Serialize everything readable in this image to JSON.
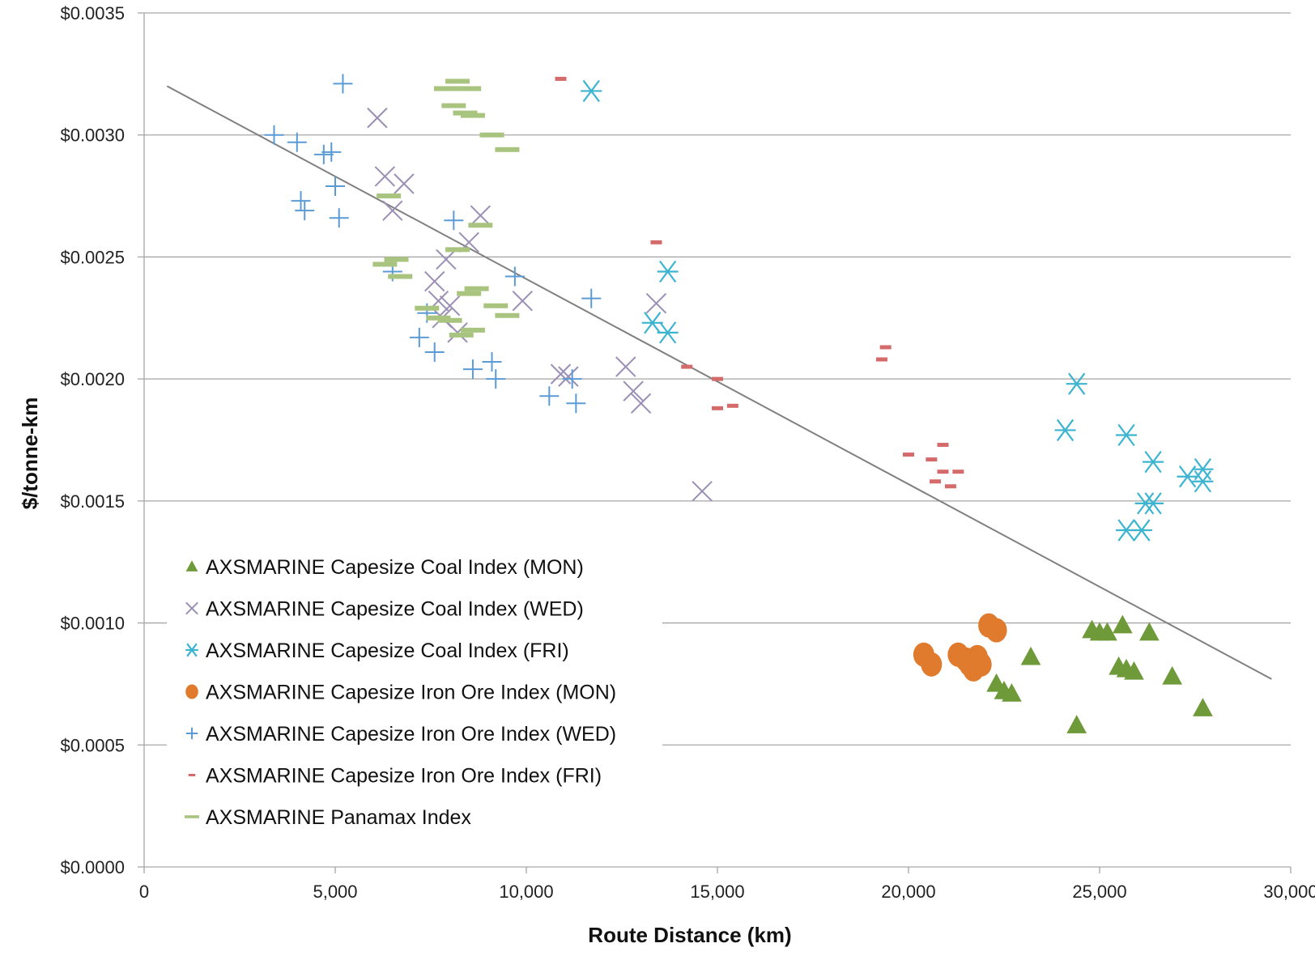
{
  "chart_data": {
    "type": "scatter",
    "title": "",
    "xlabel": "Route Distance (km)",
    "ylabel": "$/tonne-km",
    "xlim": [
      0,
      30000
    ],
    "ylim": [
      0,
      0.0035
    ],
    "x_ticks": [
      0,
      5000,
      10000,
      15000,
      20000,
      25000,
      30000
    ],
    "x_tick_labels": [
      "0",
      "5,000",
      "10,000",
      "15,000",
      "20,000",
      "25,000",
      "30,000"
    ],
    "y_ticks": [
      0,
      0.0005,
      0.001,
      0.0015,
      0.002,
      0.0025,
      0.003,
      0.0035
    ],
    "y_tick_labels": [
      "$0.0000",
      "$0.0005",
      "$0.0010",
      "$0.0015",
      "$0.0020",
      "$0.0025",
      "$0.0030",
      "$0.0035"
    ],
    "grid": "horizontal",
    "legend_position": "bottom-left",
    "series": [
      {
        "name": "AXSMARINE Capesize Coal Index (MON)",
        "marker": "triangle",
        "color": "#6f9a3a",
        "points": [
          [
            22300,
            0.00075
          ],
          [
            22500,
            0.00072
          ],
          [
            22700,
            0.00071
          ],
          [
            23200,
            0.00086
          ],
          [
            24400,
            0.00058
          ],
          [
            24800,
            0.00097
          ],
          [
            25000,
            0.00096
          ],
          [
            25200,
            0.00096
          ],
          [
            25500,
            0.00082
          ],
          [
            25600,
            0.00099
          ],
          [
            25700,
            0.00081
          ],
          [
            25900,
            0.0008
          ],
          [
            26300,
            0.00096
          ],
          [
            26900,
            0.00078
          ],
          [
            27700,
            0.00065
          ]
        ]
      },
      {
        "name": "AXSMARINE Capesize Coal Index (WED)",
        "marker": "x",
        "color": "#9b8fb5",
        "points": [
          [
            6100,
            0.00307
          ],
          [
            6300,
            0.00283
          ],
          [
            6500,
            0.00269
          ],
          [
            6800,
            0.0028
          ],
          [
            7600,
            0.0024
          ],
          [
            7700,
            0.00232
          ],
          [
            7800,
            0.00225
          ],
          [
            7900,
            0.00249
          ],
          [
            8000,
            0.0023
          ],
          [
            8200,
            0.00219
          ],
          [
            8500,
            0.00256
          ],
          [
            8800,
            0.00267
          ],
          [
            9900,
            0.00232
          ],
          [
            10900,
            0.00202
          ],
          [
            11100,
            0.00201
          ],
          [
            12600,
            0.00205
          ],
          [
            12800,
            0.00195
          ],
          [
            13000,
            0.0019
          ],
          [
            13400,
            0.00231
          ],
          [
            14600,
            0.00154
          ]
        ]
      },
      {
        "name": "AXSMARINE Capesize Coal Index (FRI)",
        "marker": "asterisk",
        "color": "#3db4d0",
        "points": [
          [
            11700,
            0.00318
          ],
          [
            13300,
            0.00223
          ],
          [
            13700,
            0.00244
          ],
          [
            13700,
            0.00219
          ],
          [
            24100,
            0.00179
          ],
          [
            24400,
            0.00198
          ],
          [
            25700,
            0.00138
          ],
          [
            25700,
            0.00177
          ],
          [
            26100,
            0.00138
          ],
          [
            26200,
            0.00149
          ],
          [
            26400,
            0.00149
          ],
          [
            26400,
            0.00166
          ],
          [
            27300,
            0.0016
          ],
          [
            27700,
            0.00163
          ],
          [
            27700,
            0.00158
          ]
        ]
      },
      {
        "name": "AXSMARINE Capesize Iron Ore Index (MON)",
        "marker": "circle",
        "color": "#e07b2e",
        "points": [
          [
            20400,
            0.00087
          ],
          [
            20600,
            0.00083
          ],
          [
            21300,
            0.00087
          ],
          [
            21500,
            0.00085
          ],
          [
            21600,
            0.00083
          ],
          [
            21700,
            0.00081
          ],
          [
            21800,
            0.00086
          ],
          [
            21900,
            0.00083
          ],
          [
            22100,
            0.00099
          ],
          [
            22300,
            0.00097
          ]
        ]
      },
      {
        "name": "AXSMARINE Capesize Iron Ore Index (WED)",
        "marker": "plus",
        "color": "#5b9bd5",
        "points": [
          [
            3400,
            0.003
          ],
          [
            4000,
            0.00297
          ],
          [
            4100,
            0.00273
          ],
          [
            4200,
            0.00269
          ],
          [
            4700,
            0.00292
          ],
          [
            4900,
            0.00293
          ],
          [
            5000,
            0.00279
          ],
          [
            5100,
            0.00266
          ],
          [
            5200,
            0.00321
          ],
          [
            6500,
            0.00244
          ],
          [
            7200,
            0.00217
          ],
          [
            7400,
            0.00227
          ],
          [
            7600,
            0.00211
          ],
          [
            8100,
            0.00265
          ],
          [
            8600,
            0.00204
          ],
          [
            9100,
            0.00207
          ],
          [
            9200,
            0.002
          ],
          [
            9700,
            0.00242
          ],
          [
            10600,
            0.00193
          ],
          [
            11200,
            0.002
          ],
          [
            11300,
            0.0019
          ],
          [
            11700,
            0.00233
          ]
        ]
      },
      {
        "name": "AXSMARINE Capesize Iron Ore Index (FRI)",
        "marker": "dash-small",
        "color": "#d46a6a",
        "points": [
          [
            10900,
            0.00323
          ],
          [
            13400,
            0.00256
          ],
          [
            14200,
            0.00205
          ],
          [
            15000,
            0.002
          ],
          [
            15000,
            0.00188
          ],
          [
            15400,
            0.00189
          ],
          [
            19300,
            0.00208
          ],
          [
            19400,
            0.00213
          ],
          [
            20000,
            0.00169
          ],
          [
            20600,
            0.00167
          ],
          [
            20700,
            0.00158
          ],
          [
            20900,
            0.00173
          ],
          [
            20900,
            0.00162
          ],
          [
            21100,
            0.00156
          ],
          [
            21300,
            0.00162
          ]
        ]
      },
      {
        "name": "AXSMARINE Panamax Index",
        "marker": "dash",
        "color": "#a9c47f",
        "points": [
          [
            6300,
            0.00247
          ],
          [
            6400,
            0.00275
          ],
          [
            6600,
            0.00249
          ],
          [
            6700,
            0.00242
          ],
          [
            7400,
            0.00229
          ],
          [
            7700,
            0.00225
          ],
          [
            7900,
            0.00319
          ],
          [
            8000,
            0.00224
          ],
          [
            8100,
            0.00312
          ],
          [
            8200,
            0.00322
          ],
          [
            8200,
            0.00253
          ],
          [
            8300,
            0.00218
          ],
          [
            8400,
            0.00309
          ],
          [
            8500,
            0.00319
          ],
          [
            8500,
            0.00235
          ],
          [
            8600,
            0.00308
          ],
          [
            8600,
            0.0022
          ],
          [
            8700,
            0.00237
          ],
          [
            8800,
            0.00263
          ],
          [
            9100,
            0.003
          ],
          [
            9200,
            0.0023
          ],
          [
            9500,
            0.00294
          ],
          [
            9500,
            0.00226
          ]
        ]
      }
    ],
    "trendline": {
      "color": "#808080",
      "points": [
        [
          600,
          0.0032
        ],
        [
          29500,
          0.00077
        ]
      ]
    }
  }
}
